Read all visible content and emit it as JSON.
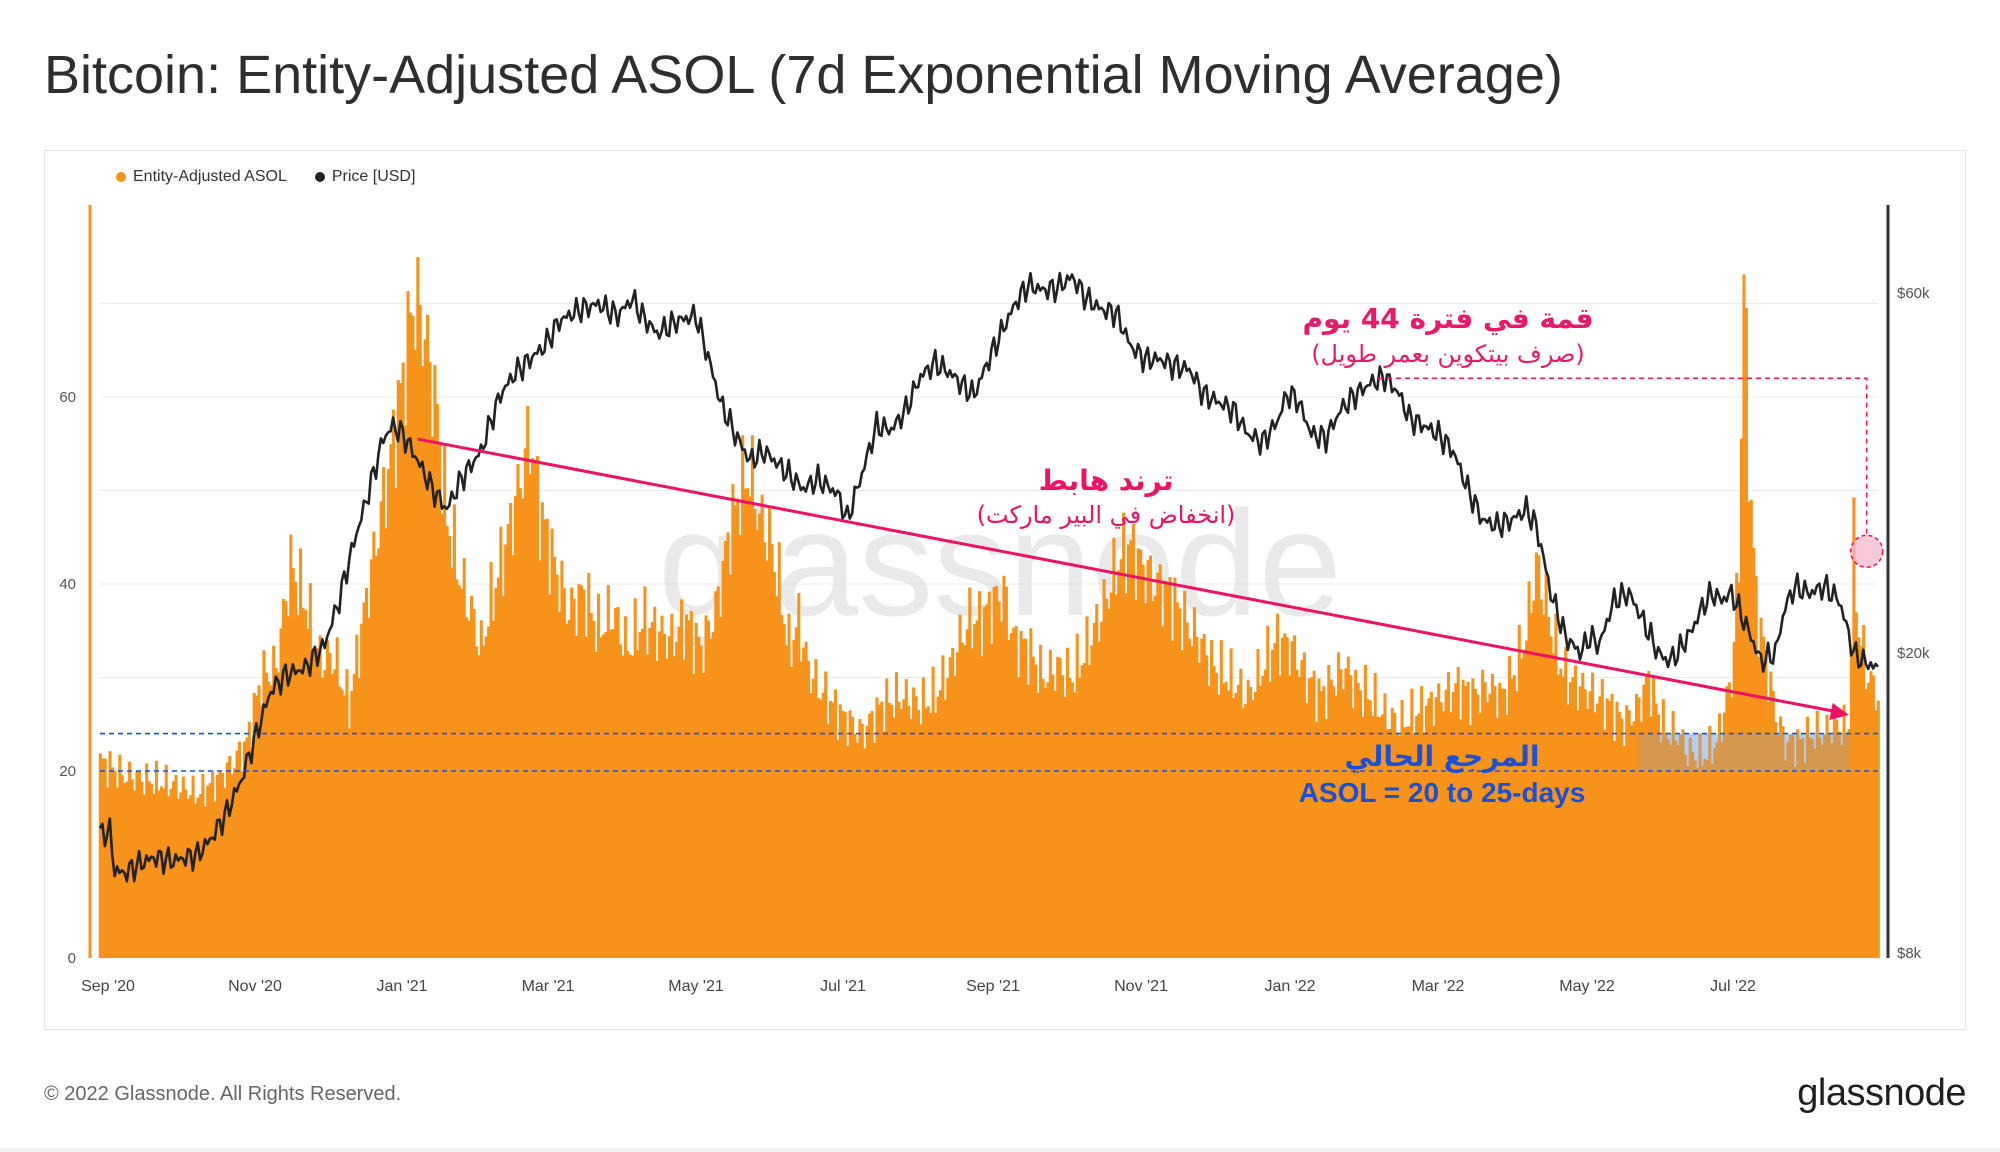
{
  "title": "Bitcoin: Entity-Adjusted ASOL (7d Exponential Moving Average)",
  "footer": {
    "copyright": "© 2022 Glassnode. All Rights Reserved.",
    "brand": "glassnode"
  },
  "watermark": "glassnode",
  "colors": {
    "asol": "#f7931a",
    "price": "#222222",
    "trend": "#ee1166",
    "reference": "#1a4fd6",
    "peak": "#e8196a"
  },
  "chart_data": {
    "type": "bar",
    "title": "Bitcoin: Entity-Adjusted ASOL (7d Exponential Moving Average)",
    "legend": [
      {
        "name": "Entity-Adjusted ASOL",
        "color": "#f7931a"
      },
      {
        "name": "Price [USD]",
        "color": "#222222"
      }
    ],
    "x_ticks": [
      "Sep '20",
      "Nov '20",
      "Jan '21",
      "Mar '21",
      "May '21",
      "Jul '21",
      "Sep '21",
      "Nov '21",
      "Jan '22",
      "Mar '22",
      "May '22",
      "Jul '22"
    ],
    "x_range_days": [
      0,
      728
    ],
    "y_left": {
      "ticks": [
        "0",
        "20",
        "40",
        "60"
      ],
      "range": [
        0,
        80
      ]
    },
    "y_right": {
      "ticks": [
        "$8k",
        "$20k",
        "$60k"
      ],
      "values": [
        8000,
        20000,
        60000
      ],
      "scale": "log"
    },
    "asol_series": {
      "name": "Entity-Adjusted ASOL",
      "points": [
        [
          0,
          21
        ],
        [
          10,
          19.5
        ],
        [
          20,
          19
        ],
        [
          30,
          18.5
        ],
        [
          40,
          17.5
        ],
        [
          48,
          19
        ],
        [
          55,
          21
        ],
        [
          60,
          23
        ],
        [
          66,
          30
        ],
        [
          72,
          31
        ],
        [
          78,
          42
        ],
        [
          84,
          38
        ],
        [
          90,
          32
        ],
        [
          96,
          32
        ],
        [
          102,
          27
        ],
        [
          110,
          40
        ],
        [
          118,
          52
        ],
        [
          124,
          62
        ],
        [
          128,
          70
        ],
        [
          131,
          69
        ],
        [
          134,
          65
        ],
        [
          138,
          58
        ],
        [
          142,
          47
        ],
        [
          148,
          40
        ],
        [
          152,
          37
        ],
        [
          156,
          33
        ],
        [
          160,
          38
        ],
        [
          166,
          44
        ],
        [
          172,
          51
        ],
        [
          176,
          56
        ],
        [
          180,
          48
        ],
        [
          186,
          42
        ],
        [
          192,
          37
        ],
        [
          198,
          39
        ],
        [
          204,
          35
        ],
        [
          210,
          37
        ],
        [
          216,
          33
        ],
        [
          222,
          36
        ],
        [
          228,
          35
        ],
        [
          234,
          34
        ],
        [
          240,
          36
        ],
        [
          246,
          33
        ],
        [
          252,
          37
        ],
        [
          258,
          46
        ],
        [
          262,
          50
        ],
        [
          266,
          52
        ],
        [
          270,
          47
        ],
        [
          274,
          45
        ],
        [
          278,
          40
        ],
        [
          282,
          33
        ],
        [
          286,
          36
        ],
        [
          290,
          31
        ],
        [
          294,
          29
        ],
        [
          300,
          27
        ],
        [
          305,
          25.5
        ],
        [
          312,
          24
        ],
        [
          320,
          27
        ],
        [
          328,
          28
        ],
        [
          336,
          27
        ],
        [
          342,
          28
        ],
        [
          348,
          31
        ],
        [
          352,
          34
        ],
        [
          356,
          36
        ],
        [
          360,
          36
        ],
        [
          366,
          38
        ],
        [
          370,
          39
        ],
        [
          374,
          34
        ],
        [
          380,
          33
        ],
        [
          386,
          30
        ],
        [
          392,
          31
        ],
        [
          398,
          30
        ],
        [
          404,
          33
        ],
        [
          410,
          37
        ],
        [
          414,
          40
        ],
        [
          418,
          43
        ],
        [
          422,
          44
        ],
        [
          426,
          42
        ],
        [
          432,
          40
        ],
        [
          438,
          39
        ],
        [
          444,
          36
        ],
        [
          450,
          34
        ],
        [
          456,
          31
        ],
        [
          462,
          30
        ],
        [
          466,
          29
        ],
        [
          470,
          28
        ],
        [
          476,
          31
        ],
        [
          482,
          34
        ],
        [
          488,
          33
        ],
        [
          494,
          30
        ],
        [
          500,
          28
        ],
        [
          506,
          30
        ],
        [
          510,
          31
        ],
        [
          514,
          29
        ],
        [
          520,
          28
        ],
        [
          526,
          26
        ],
        [
          532,
          25
        ],
        [
          538,
          26
        ],
        [
          544,
          27
        ],
        [
          550,
          28
        ],
        [
          556,
          29
        ],
        [
          562,
          28
        ],
        [
          568,
          29
        ],
        [
          574,
          28
        ],
        [
          580,
          31
        ],
        [
          584,
          35
        ],
        [
          588,
          42
        ],
        [
          592,
          38
        ],
        [
          596,
          33
        ],
        [
          600,
          30
        ],
        [
          606,
          29
        ],
        [
          612,
          28
        ],
        [
          618,
          27
        ],
        [
          624,
          25
        ],
        [
          630,
          27
        ],
        [
          634,
          30
        ],
        [
          638,
          26
        ],
        [
          642,
          24
        ],
        [
          646,
          24
        ],
        [
          650,
          22
        ],
        [
          656,
          21.5
        ],
        [
          662,
          23
        ],
        [
          668,
          30
        ],
        [
          671,
          42
        ],
        [
          673,
          73
        ],
        [
          675,
          54
        ],
        [
          678,
          38
        ],
        [
          682,
          32
        ],
        [
          686,
          26
        ],
        [
          690,
          23
        ],
        [
          696,
          23
        ],
        [
          702,
          24
        ],
        [
          706,
          24
        ],
        [
          710,
          25
        ],
        [
          714,
          24.5
        ],
        [
          716,
          25
        ],
        [
          718,
          44
        ],
        [
          720,
          35
        ],
        [
          724,
          30
        ],
        [
          728,
          28
        ]
      ]
    },
    "price_series": {
      "name": "Price [USD]",
      "points": [
        [
          0,
          11500
        ],
        [
          4,
          11600
        ],
        [
          6,
          10300
        ],
        [
          10,
          10200
        ],
        [
          16,
          10500
        ],
        [
          22,
          10700
        ],
        [
          30,
          10600
        ],
        [
          40,
          10800
        ],
        [
          46,
          11400
        ],
        [
          52,
          12300
        ],
        [
          58,
          13600
        ],
        [
          64,
          15600
        ],
        [
          70,
          17800
        ],
        [
          76,
          18700
        ],
        [
          84,
          19100
        ],
        [
          92,
          20500
        ],
        [
          98,
          23500
        ],
        [
          104,
          28000
        ],
        [
          108,
          31000
        ],
        [
          112,
          34500
        ],
        [
          116,
          38500
        ],
        [
          120,
          40000
        ],
        [
          124,
          39000
        ],
        [
          130,
          36000
        ],
        [
          136,
          33000
        ],
        [
          142,
          31000
        ],
        [
          148,
          34000
        ],
        [
          156,
          37000
        ],
        [
          164,
          44000
        ],
        [
          170,
          47000
        ],
        [
          176,
          49000
        ],
        [
          182,
          51000
        ],
        [
          188,
          55000
        ],
        [
          196,
          57000
        ],
        [
          204,
          58000
        ],
        [
          212,
          56000
        ],
        [
          218,
          59000
        ],
        [
          222,
          56000
        ],
        [
          228,
          53000
        ],
        [
          236,
          55000
        ],
        [
          244,
          56000
        ],
        [
          250,
          48000
        ],
        [
          254,
          43000
        ],
        [
          260,
          39000
        ],
        [
          266,
          36000
        ],
        [
          272,
          37000
        ],
        [
          280,
          35000
        ],
        [
          288,
          33000
        ],
        [
          294,
          34000
        ],
        [
          302,
          32500
        ],
        [
          306,
          30000
        ],
        [
          312,
          34500
        ],
        [
          318,
          40000
        ],
        [
          324,
          39500
        ],
        [
          330,
          42000
        ],
        [
          336,
          46500
        ],
        [
          342,
          48500
        ],
        [
          348,
          47000
        ],
        [
          354,
          45000
        ],
        [
          358,
          44000
        ],
        [
          364,
          49000
        ],
        [
          370,
          54000
        ],
        [
          376,
          59000
        ],
        [
          380,
          61500
        ],
        [
          386,
          60500
        ],
        [
          392,
          61000
        ],
        [
          398,
          63000
        ],
        [
          404,
          59000
        ],
        [
          410,
          57000
        ],
        [
          416,
          56500
        ],
        [
          422,
          51000
        ],
        [
          428,
          49000
        ],
        [
          434,
          49000
        ],
        [
          440,
          48000
        ],
        [
          446,
          47500
        ],
        [
          452,
          44000
        ],
        [
          458,
          43000
        ],
        [
          464,
          42000
        ],
        [
          470,
          39000
        ],
        [
          476,
          38000
        ],
        [
          482,
          40500
        ],
        [
          486,
          44000
        ],
        [
          490,
          43500
        ],
        [
          496,
          39000
        ],
        [
          502,
          38500
        ],
        [
          508,
          42000
        ],
        [
          514,
          44000
        ],
        [
          520,
          45500
        ],
        [
          526,
          46500
        ],
        [
          532,
          44000
        ],
        [
          536,
          41000
        ],
        [
          542,
          40000
        ],
        [
          548,
          39000
        ],
        [
          554,
          37000
        ],
        [
          560,
          33000
        ],
        [
          566,
          30000
        ],
        [
          572,
          29500
        ],
        [
          578,
          30000
        ],
        [
          584,
          31000
        ],
        [
          588,
          29500
        ],
        [
          594,
          24000
        ],
        [
          600,
          21000
        ],
        [
          606,
          20000
        ],
        [
          610,
          21000
        ],
        [
          614,
          20500
        ],
        [
          620,
          23500
        ],
        [
          626,
          24000
        ],
        [
          632,
          22000
        ],
        [
          638,
          20000
        ],
        [
          642,
          19500
        ],
        [
          646,
          20000
        ],
        [
          652,
          21500
        ],
        [
          656,
          23000
        ],
        [
          660,
          24000
        ],
        [
          664,
          23500
        ],
        [
          668,
          24000
        ],
        [
          672,
          22500
        ],
        [
          676,
          21000
        ],
        [
          680,
          19500
        ],
        [
          686,
          20000
        ],
        [
          690,
          23000
        ],
        [
          694,
          24500
        ],
        [
          700,
          24000
        ],
        [
          706,
          24500
        ],
        [
          712,
          23500
        ],
        [
          718,
          20000
        ],
        [
          722,
          19500
        ],
        [
          726,
          19200
        ],
        [
          728,
          19000
        ]
      ]
    },
    "annotations": {
      "downtrend": {
        "title": "ترند هابط",
        "subtitle": "(انخفاض في البير ماركت)",
        "from": [
          130,
          55.5
        ],
        "to": [
          716,
          26
        ]
      },
      "peak": {
        "title": "قمة في فترة 44 يوم",
        "subtitle": "(صرف بيتكوين بعمر طويل)",
        "at": [
          716,
          43.5
        ],
        "marker_level": 62
      },
      "reference": {
        "title": "المرجع الحالي",
        "subtitle": "ASOL = 20 to 25-days",
        "band": [
          20,
          24
        ],
        "shaded_days": [
          630,
          716
        ]
      }
    }
  }
}
